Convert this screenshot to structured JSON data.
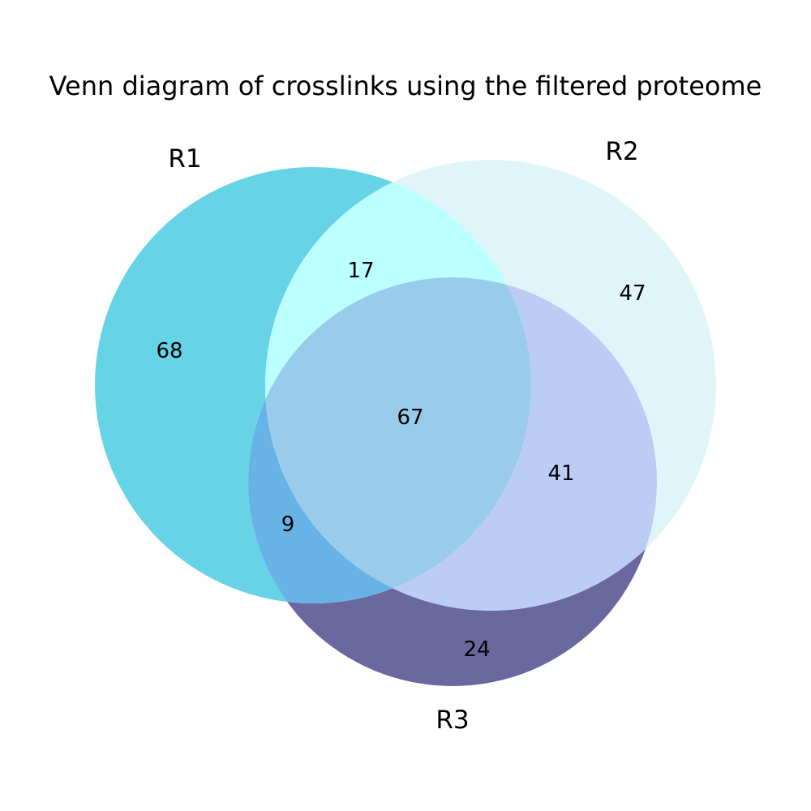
{
  "title": "Venn diagram of crosslinks using the filtered proteome",
  "sets": [
    {
      "label": "R1",
      "color": "#00b3cf"
    },
    {
      "label": "R2",
      "color": "#c5eef5"
    },
    {
      "label": "R3",
      "color": "#262d7a"
    }
  ],
  "regions": {
    "r1_only": "68",
    "r2_only": "47",
    "r3_only": "24",
    "r1_r2": "17",
    "r1_r3": "9",
    "r2_r3": "41",
    "r1_r2_r3": "67"
  },
  "region_colors": {
    "r1_only": "#66d3e6",
    "r2_only": "#dff5f9",
    "r3_only": "#6a689f",
    "r1_r2": "#bbffff",
    "r1_r3": "#68b3e5",
    "r2_r3": "#bbcdf5",
    "r1_r2_r3": "#99cbeb"
  }
}
